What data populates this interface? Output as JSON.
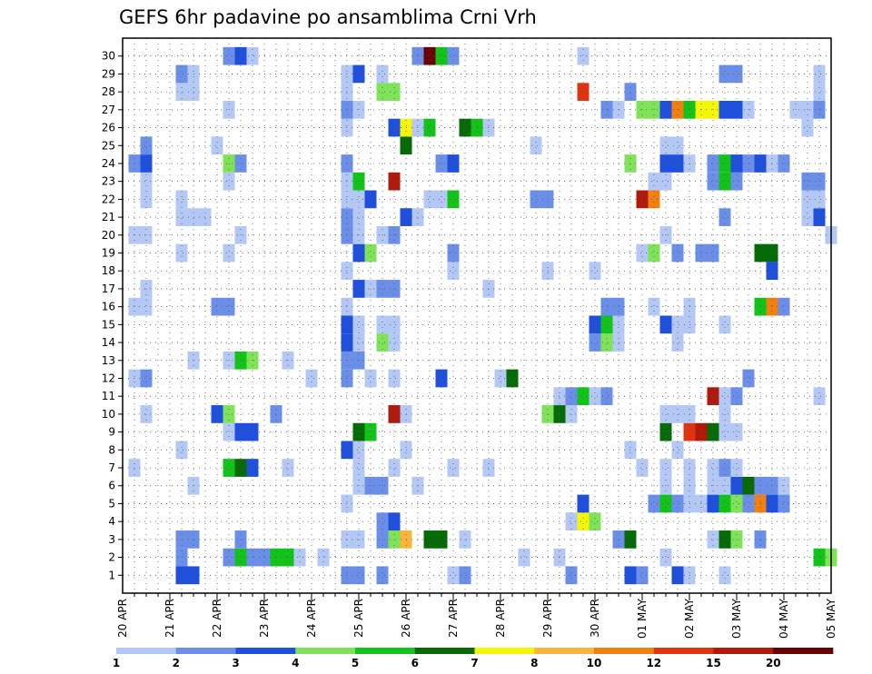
{
  "chart_data": {
    "type": "heatmap",
    "title": "GEFS 6hr padavine po ansamblima Crni Vrh",
    "y_categories": [
      "1",
      "2",
      "3",
      "4",
      "5",
      "6",
      "7",
      "8",
      "9",
      "10",
      "11",
      "12",
      "13",
      "14",
      "15",
      "16",
      "17",
      "18",
      "19",
      "20",
      "21",
      "22",
      "23",
      "24",
      "25",
      "26",
      "27",
      "28",
      "29",
      "30"
    ],
    "x_tick_labels": [
      "20 APR",
      "21 APR",
      "22 APR",
      "23 APR",
      "24 APR",
      "25 APR",
      "26 APR",
      "27 APR",
      "28 APR",
      "29 APR",
      "30 APR",
      "01 MAY",
      "02 MAY",
      "03 MAY",
      "04 MAY",
      "05 MAY"
    ],
    "x_range_steps": [
      0,
      60
    ],
    "steps_per_day": 4,
    "legend": {
      "labels": [
        "1",
        "2",
        "3",
        "4",
        "5",
        "6",
        "7",
        "8",
        "10",
        "12",
        "15",
        "20"
      ],
      "colors": [
        "#b3c8f5",
        "#6b8fe8",
        "#1f4fdd",
        "#7fe35a",
        "#12c31a",
        "#066b06",
        "#f5f508",
        "#f9b43c",
        "#f08010",
        "#e03410",
        "#b01a0c",
        "#6a0000"
      ]
    },
    "cells": [
      [
        5,
        1,
        3
      ],
      [
        6,
        1,
        3
      ],
      [
        19,
        1,
        2
      ],
      [
        20,
        1,
        2
      ],
      [
        22,
        1,
        2
      ],
      [
        28,
        1,
        1
      ],
      [
        29,
        1,
        2
      ],
      [
        38,
        1,
        2
      ],
      [
        43,
        1,
        3
      ],
      [
        44,
        1,
        2
      ],
      [
        47,
        1,
        3
      ],
      [
        48,
        1,
        1
      ],
      [
        51,
        1,
        1
      ],
      [
        5,
        2,
        2
      ],
      [
        9,
        2,
        2
      ],
      [
        10,
        2,
        5
      ],
      [
        11,
        2,
        2
      ],
      [
        12,
        2,
        2
      ],
      [
        13,
        2,
        5
      ],
      [
        14,
        2,
        5
      ],
      [
        15,
        2,
        1
      ],
      [
        17,
        2,
        1
      ],
      [
        34,
        2,
        1
      ],
      [
        37,
        2,
        1
      ],
      [
        46,
        2,
        1
      ],
      [
        59,
        2,
        5
      ],
      [
        60,
        2,
        4
      ],
      [
        5,
        3,
        2
      ],
      [
        6,
        3,
        2
      ],
      [
        10,
        3,
        2
      ],
      [
        19,
        3,
        1
      ],
      [
        20,
        3,
        1
      ],
      [
        22,
        3,
        2
      ],
      [
        23,
        3,
        4
      ],
      [
        24,
        3,
        8
      ],
      [
        26,
        3,
        6
      ],
      [
        27,
        3,
        6
      ],
      [
        29,
        3,
        1
      ],
      [
        42,
        3,
        2
      ],
      [
        43,
        3,
        6
      ],
      [
        50,
        3,
        1
      ],
      [
        51,
        3,
        6
      ],
      [
        52,
        3,
        4
      ],
      [
        54,
        3,
        2
      ],
      [
        22,
        4,
        2
      ],
      [
        23,
        4,
        3
      ],
      [
        38,
        4,
        1
      ],
      [
        39,
        4,
        7
      ],
      [
        40,
        4,
        4
      ],
      [
        19,
        5,
        1
      ],
      [
        39,
        5,
        3
      ],
      [
        45,
        5,
        2
      ],
      [
        46,
        5,
        5
      ],
      [
        47,
        5,
        2
      ],
      [
        48,
        5,
        1
      ],
      [
        49,
        5,
        1
      ],
      [
        50,
        5,
        3
      ],
      [
        51,
        5,
        5
      ],
      [
        52,
        5,
        4
      ],
      [
        53,
        5,
        2
      ],
      [
        54,
        5,
        9
      ],
      [
        55,
        5,
        3
      ],
      [
        56,
        5,
        2
      ],
      [
        6,
        6,
        1
      ],
      [
        20,
        6,
        1
      ],
      [
        21,
        6,
        2
      ],
      [
        22,
        6,
        2
      ],
      [
        25,
        6,
        1
      ],
      [
        46,
        6,
        1
      ],
      [
        48,
        6,
        1
      ],
      [
        50,
        6,
        1
      ],
      [
        51,
        6,
        1
      ],
      [
        52,
        6,
        3
      ],
      [
        53,
        6,
        6
      ],
      [
        54,
        6,
        2
      ],
      [
        55,
        6,
        2
      ],
      [
        56,
        6,
        1
      ],
      [
        1,
        7,
        1
      ],
      [
        9,
        7,
        5
      ],
      [
        10,
        7,
        6
      ],
      [
        11,
        7,
        3
      ],
      [
        14,
        7,
        1
      ],
      [
        20,
        7,
        1
      ],
      [
        23,
        7,
        1
      ],
      [
        28,
        7,
        1
      ],
      [
        31,
        7,
        1
      ],
      [
        44,
        7,
        1
      ],
      [
        46,
        7,
        1
      ],
      [
        48,
        7,
        1
      ],
      [
        50,
        7,
        1
      ],
      [
        51,
        7,
        2
      ],
      [
        52,
        7,
        1
      ],
      [
        5,
        8,
        1
      ],
      [
        19,
        8,
        3
      ],
      [
        20,
        8,
        1
      ],
      [
        24,
        8,
        1
      ],
      [
        43,
        8,
        1
      ],
      [
        47,
        8,
        1
      ],
      [
        9,
        9,
        1
      ],
      [
        10,
        9,
        3
      ],
      [
        11,
        9,
        3
      ],
      [
        20,
        9,
        6
      ],
      [
        21,
        9,
        5
      ],
      [
        46,
        9,
        6
      ],
      [
        48,
        9,
        10
      ],
      [
        49,
        9,
        11
      ],
      [
        50,
        9,
        6
      ],
      [
        51,
        9,
        1
      ],
      [
        52,
        9,
        1
      ],
      [
        2,
        10,
        1
      ],
      [
        8,
        10,
        3
      ],
      [
        9,
        10,
        4
      ],
      [
        13,
        10,
        2
      ],
      [
        23,
        10,
        11
      ],
      [
        24,
        10,
        1
      ],
      [
        36,
        10,
        4
      ],
      [
        37,
        10,
        6
      ],
      [
        38,
        10,
        1
      ],
      [
        46,
        10,
        1
      ],
      [
        47,
        10,
        1
      ],
      [
        48,
        10,
        1
      ],
      [
        51,
        10,
        1
      ],
      [
        37,
        11,
        1
      ],
      [
        38,
        11,
        2
      ],
      [
        39,
        11,
        5
      ],
      [
        40,
        11,
        1
      ],
      [
        41,
        11,
        2
      ],
      [
        50,
        11,
        11
      ],
      [
        51,
        11,
        1
      ],
      [
        52,
        11,
        2
      ],
      [
        59,
        11,
        1
      ],
      [
        1,
        12,
        1
      ],
      [
        2,
        12,
        2
      ],
      [
        16,
        12,
        1
      ],
      [
        19,
        12,
        2
      ],
      [
        21,
        12,
        1
      ],
      [
        23,
        12,
        1
      ],
      [
        27,
        12,
        3
      ],
      [
        32,
        12,
        1
      ],
      [
        33,
        12,
        6
      ],
      [
        53,
        12,
        2
      ],
      [
        6,
        13,
        1
      ],
      [
        9,
        13,
        1
      ],
      [
        10,
        13,
        5
      ],
      [
        11,
        13,
        4
      ],
      [
        14,
        13,
        1
      ],
      [
        19,
        13,
        2
      ],
      [
        20,
        13,
        2
      ],
      [
        19,
        14,
        3
      ],
      [
        20,
        14,
        1
      ],
      [
        22,
        14,
        4
      ],
      [
        23,
        14,
        1
      ],
      [
        40,
        14,
        2
      ],
      [
        41,
        14,
        4
      ],
      [
        42,
        14,
        1
      ],
      [
        47,
        14,
        1
      ],
      [
        19,
        15,
        3
      ],
      [
        20,
        15,
        1
      ],
      [
        22,
        15,
        1
      ],
      [
        23,
        15,
        1
      ],
      [
        40,
        15,
        3
      ],
      [
        41,
        15,
        5
      ],
      [
        42,
        15,
        1
      ],
      [
        46,
        15,
        3
      ],
      [
        47,
        15,
        1
      ],
      [
        48,
        15,
        1
      ],
      [
        51,
        15,
        1
      ],
      [
        1,
        16,
        1
      ],
      [
        2,
        16,
        1
      ],
      [
        8,
        16,
        2
      ],
      [
        9,
        16,
        2
      ],
      [
        19,
        16,
        1
      ],
      [
        41,
        16,
        2
      ],
      [
        42,
        16,
        2
      ],
      [
        45,
        16,
        1
      ],
      [
        48,
        16,
        1
      ],
      [
        54,
        16,
        5
      ],
      [
        55,
        16,
        9
      ],
      [
        56,
        16,
        2
      ],
      [
        2,
        17,
        1
      ],
      [
        20,
        17,
        3
      ],
      [
        21,
        17,
        1
      ],
      [
        22,
        17,
        2
      ],
      [
        23,
        17,
        2
      ],
      [
        31,
        17,
        1
      ],
      [
        19,
        18,
        1
      ],
      [
        28,
        18,
        1
      ],
      [
        36,
        18,
        1
      ],
      [
        40,
        18,
        1
      ],
      [
        55,
        18,
        3
      ],
      [
        5,
        19,
        1
      ],
      [
        9,
        19,
        1
      ],
      [
        20,
        19,
        3
      ],
      [
        21,
        19,
        4
      ],
      [
        28,
        19,
        2
      ],
      [
        44,
        19,
        1
      ],
      [
        45,
        19,
        4
      ],
      [
        47,
        19,
        2
      ],
      [
        49,
        19,
        2
      ],
      [
        50,
        19,
        2
      ],
      [
        54,
        19,
        6
      ],
      [
        55,
        19,
        6
      ],
      [
        1,
        20,
        1
      ],
      [
        2,
        20,
        1
      ],
      [
        10,
        20,
        1
      ],
      [
        19,
        20,
        2
      ],
      [
        20,
        20,
        1
      ],
      [
        22,
        20,
        1
      ],
      [
        23,
        20,
        2
      ],
      [
        46,
        20,
        1
      ],
      [
        60,
        20,
        1
      ],
      [
        5,
        21,
        1
      ],
      [
        6,
        21,
        1
      ],
      [
        7,
        21,
        1
      ],
      [
        19,
        21,
        2
      ],
      [
        20,
        21,
        1
      ],
      [
        24,
        21,
        3
      ],
      [
        25,
        21,
        1
      ],
      [
        51,
        21,
        2
      ],
      [
        58,
        21,
        1
      ],
      [
        59,
        21,
        3
      ],
      [
        2,
        22,
        1
      ],
      [
        5,
        22,
        1
      ],
      [
        19,
        22,
        1
      ],
      [
        20,
        22,
        1
      ],
      [
        21,
        22,
        3
      ],
      [
        26,
        22,
        1
      ],
      [
        27,
        22,
        1
      ],
      [
        28,
        22,
        5
      ],
      [
        35,
        22,
        2
      ],
      [
        36,
        22,
        2
      ],
      [
        44,
        22,
        11
      ],
      [
        45,
        22,
        9
      ],
      [
        58,
        22,
        1
      ],
      [
        59,
        22,
        1
      ],
      [
        2,
        23,
        1
      ],
      [
        9,
        23,
        1
      ],
      [
        19,
        23,
        1
      ],
      [
        20,
        23,
        5
      ],
      [
        23,
        23,
        11
      ],
      [
        45,
        23,
        1
      ],
      [
        46,
        23,
        1
      ],
      [
        50,
        23,
        2
      ],
      [
        51,
        23,
        5
      ],
      [
        52,
        23,
        2
      ],
      [
        58,
        23,
        2
      ],
      [
        59,
        23,
        2
      ],
      [
        1,
        24,
        2
      ],
      [
        2,
        24,
        3
      ],
      [
        9,
        24,
        4
      ],
      [
        10,
        24,
        2
      ],
      [
        19,
        24,
        2
      ],
      [
        27,
        24,
        2
      ],
      [
        28,
        24,
        3
      ],
      [
        43,
        24,
        4
      ],
      [
        46,
        24,
        3
      ],
      [
        47,
        24,
        3
      ],
      [
        48,
        24,
        1
      ],
      [
        50,
        24,
        2
      ],
      [
        51,
        24,
        5
      ],
      [
        52,
        24,
        3
      ],
      [
        53,
        24,
        2
      ],
      [
        54,
        24,
        3
      ],
      [
        55,
        24,
        1
      ],
      [
        56,
        24,
        2
      ],
      [
        2,
        25,
        2
      ],
      [
        8,
        25,
        1
      ],
      [
        24,
        25,
        6
      ],
      [
        35,
        25,
        1
      ],
      [
        46,
        25,
        1
      ],
      [
        47,
        25,
        1
      ],
      [
        19,
        26,
        1
      ],
      [
        23,
        26,
        3
      ],
      [
        24,
        26,
        7
      ],
      [
        25,
        26,
        1
      ],
      [
        26,
        26,
        5
      ],
      [
        29,
        26,
        6
      ],
      [
        30,
        26,
        5
      ],
      [
        31,
        26,
        1
      ],
      [
        58,
        26,
        1
      ],
      [
        9,
        27,
        1
      ],
      [
        19,
        27,
        2
      ],
      [
        20,
        27,
        1
      ],
      [
        41,
        27,
        2
      ],
      [
        42,
        27,
        1
      ],
      [
        44,
        27,
        4
      ],
      [
        45,
        27,
        4
      ],
      [
        46,
        27,
        3
      ],
      [
        47,
        27,
        9
      ],
      [
        48,
        27,
        5
      ],
      [
        49,
        27,
        7
      ],
      [
        50,
        27,
        7
      ],
      [
        51,
        27,
        3
      ],
      [
        52,
        27,
        3
      ],
      [
        53,
        27,
        1
      ],
      [
        57,
        27,
        1
      ],
      [
        58,
        27,
        1
      ],
      [
        59,
        27,
        2
      ],
      [
        5,
        28,
        1
      ],
      [
        6,
        28,
        1
      ],
      [
        19,
        28,
        1
      ],
      [
        22,
        28,
        4
      ],
      [
        23,
        28,
        4
      ],
      [
        39,
        28,
        10
      ],
      [
        43,
        28,
        2
      ],
      [
        59,
        28,
        1
      ],
      [
        5,
        29,
        2
      ],
      [
        6,
        29,
        1
      ],
      [
        19,
        29,
        1
      ],
      [
        20,
        29,
        3
      ],
      [
        22,
        29,
        1
      ],
      [
        51,
        29,
        2
      ],
      [
        52,
        29,
        2
      ],
      [
        59,
        29,
        1
      ],
      [
        9,
        30,
        2
      ],
      [
        10,
        30,
        3
      ],
      [
        11,
        30,
        1
      ],
      [
        25,
        30,
        2
      ],
      [
        26,
        30,
        12
      ],
      [
        27,
        30,
        5
      ],
      [
        28,
        30,
        2
      ],
      [
        39,
        30,
        1
      ]
    ]
  }
}
